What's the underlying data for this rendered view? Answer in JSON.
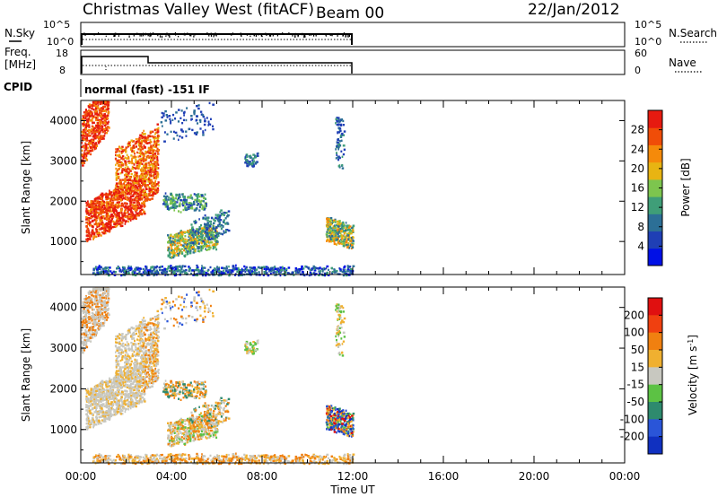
{
  "header": {
    "station": "Christmas Valley West (fitACF)",
    "beam": "Beam 00",
    "date": "22/Jan/2012"
  },
  "noise_panel": {
    "left_label": "N.Sky",
    "right_label": "N.Search",
    "left_ticks": [
      "10^5",
      "10^0"
    ],
    "right_ticks": [
      "10^5",
      "10^0"
    ]
  },
  "freq_panel": {
    "left_label_1": "Freq.",
    "left_label_2": "[MHz]",
    "right_label": "Nave",
    "left_ticks": [
      "18",
      "8"
    ],
    "right_ticks": [
      "60",
      "0"
    ]
  },
  "cpid": {
    "label": "CPID",
    "mode_text": "normal (fast) -151 IF"
  },
  "chart_data": [
    {
      "type": "heatmap",
      "panel": "power",
      "ylabel": "Slant Range [km]",
      "y_ticks": [
        "1000",
        "2000",
        "3000",
        "4000"
      ],
      "ylim": [
        180,
        4500
      ],
      "xlim": [
        0,
        24
      ],
      "colorbar_label": "Power [dB]",
      "colorbar_ticks": [
        "4",
        "8",
        "12",
        "16",
        "20",
        "24",
        "28"
      ],
      "colorbar_range": [
        0,
        32
      ],
      "colors": [
        "#0010e6",
        "#1f3fb5",
        "#2c6f96",
        "#3f9e78",
        "#7dc54e",
        "#e8b412",
        "#f58a0a",
        "#f04d08",
        "#e61a10"
      ],
      "data_extent_hours": [
        0,
        12
      ]
    },
    {
      "type": "heatmap",
      "panel": "velocity",
      "ylabel": "Slant Range [km]",
      "y_ticks": [
        "1000",
        "2000",
        "3000",
        "4000"
      ],
      "ylim": [
        180,
        4500
      ],
      "xlim": [
        0,
        24
      ],
      "xlabel": "Time UT",
      "x_ticks": [
        "00:00",
        "04:00",
        "08:00",
        "12:00",
        "16:00",
        "20:00",
        "00:00"
      ],
      "colorbar_label": "Velocity [m s^-1]",
      "colorbar_ticks": [
        "200",
        "100",
        "50",
        "15",
        "-15",
        "-50",
        "-100",
        "-200"
      ],
      "colorbar_range": [
        -250,
        250
      ],
      "colors": [
        "#1030c0",
        "#2a55d8",
        "#2e8a6e",
        "#5cc244",
        "#c8c8c0",
        "#f0b030",
        "#f08010",
        "#f04010",
        "#e01010"
      ],
      "data_extent_hours": [
        0,
        12
      ]
    }
  ]
}
